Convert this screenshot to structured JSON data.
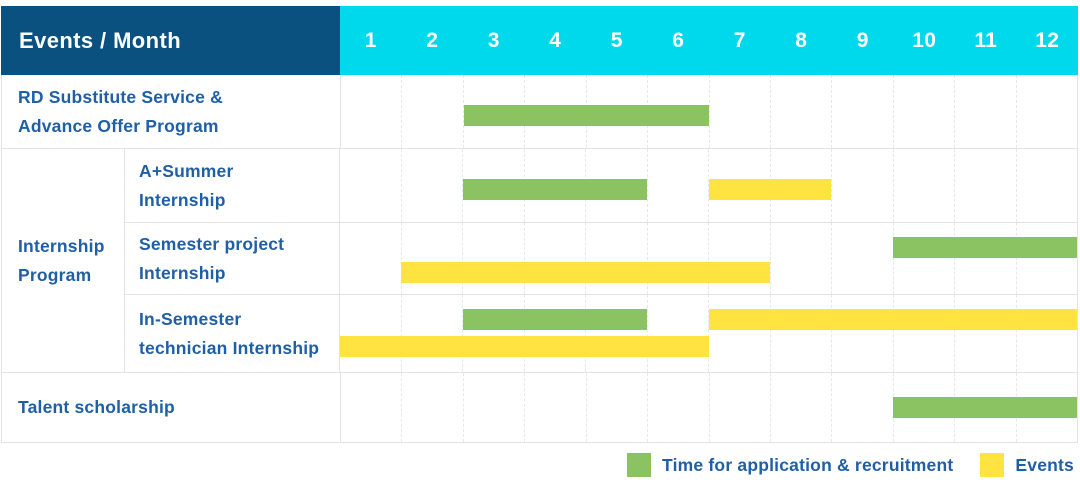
{
  "header": {
    "title": "Events / Month",
    "months": [
      "1",
      "2",
      "3",
      "4",
      "5",
      "6",
      "7",
      "8",
      "9",
      "10",
      "11",
      "12"
    ]
  },
  "colors": {
    "header_bg": "#0a5180",
    "months_bg": "#00d8ec",
    "header_text": "#ffffff",
    "label_text": "#1e5fa6",
    "grid_border": "#e2e3e6",
    "bar_green": "#8bc362",
    "bar_yellow": "#ffe340"
  },
  "legend": [
    {
      "label": "Time for application & recruitment",
      "color": "#8bc362"
    },
    {
      "label": "Events",
      "color": "#ffe340"
    }
  ],
  "chart_data": {
    "type": "gantt",
    "title": "Events / Month",
    "x_axis": {
      "label": "Month",
      "ticks": [
        1,
        2,
        3,
        4,
        5,
        6,
        7,
        8,
        9,
        10,
        11,
        12
      ],
      "range": [
        1,
        12
      ]
    },
    "series_legend": [
      "Time for application & recruitment",
      "Events"
    ],
    "rows": [
      {
        "group": null,
        "label": "RD Substitute Service &\nAdvance Offer Program",
        "bars": [
          {
            "series": "Time for application & recruitment",
            "start_month": 3,
            "end_month": 6,
            "line": 0
          }
        ]
      },
      {
        "group": "Internship\nProgram",
        "label": "A+Summer\nInternship",
        "bars": [
          {
            "series": "Time for application & recruitment",
            "start_month": 3,
            "end_month": 5,
            "line": 0
          },
          {
            "series": "Events",
            "start_month": 7,
            "end_month": 8,
            "line": 0
          }
        ]
      },
      {
        "group": "Internship\nProgram",
        "label": "Semester project\nInternship",
        "bars": [
          {
            "series": "Time for application & recruitment",
            "start_month": 10,
            "end_month": 12,
            "line": 0
          },
          {
            "series": "Events",
            "start_month": 2,
            "end_month": 7,
            "line": 1
          }
        ]
      },
      {
        "group": "Internship\nProgram",
        "label": "In-Semester\ntechnician Internship",
        "bars": [
          {
            "series": "Time for application & recruitment",
            "start_month": 3,
            "end_month": 5,
            "line": 0
          },
          {
            "series": "Events",
            "start_month": 7,
            "end_month": 12,
            "line": 0
          },
          {
            "series": "Events",
            "start_month": 1,
            "end_month": 6,
            "line": 1
          }
        ]
      },
      {
        "group": null,
        "label": "Talent scholarship",
        "bars": [
          {
            "series": "Time for application & recruitment",
            "start_month": 10,
            "end_month": 12,
            "line": 0
          }
        ]
      }
    ]
  }
}
